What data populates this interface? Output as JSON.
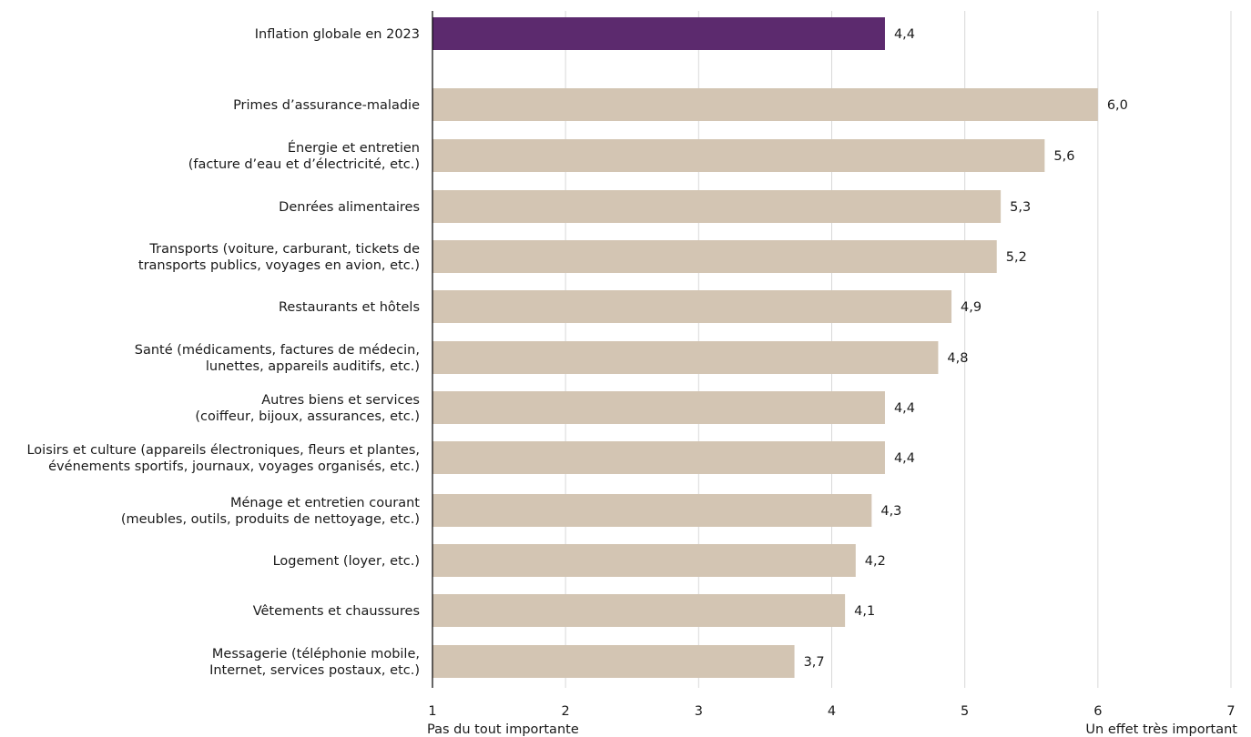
{
  "chart_data": {
    "type": "bar",
    "orientation": "horizontal",
    "xlim": [
      1,
      7
    ],
    "x_ticks": [
      "1",
      "2",
      "3",
      "4",
      "5",
      "6",
      "7"
    ],
    "x_axis_left_label": "Pas du tout importante",
    "x_axis_right_label": "Un effet très important",
    "grid": true,
    "colors": {
      "highlight": "#5c2a6e",
      "default": "#d3c5b3",
      "gridline": "#d9d9d9",
      "axis": "#000000"
    },
    "categories": [
      {
        "label": [
          "Inflation globale en 2023"
        ],
        "value": 4.4,
        "value_label": "4,4",
        "highlight": true
      },
      {
        "label": [
          "Primes d’assurance-maladie"
        ],
        "value": 6.0,
        "value_label": "6,0",
        "highlight": false
      },
      {
        "label": [
          "Énergie et entretien",
          "(facture d’eau et d’électricité, etc.)"
        ],
        "value": 5.6,
        "value_label": "5,6",
        "highlight": false
      },
      {
        "label": [
          "Denrées alimentaires"
        ],
        "value": 5.27,
        "value_label": "5,3",
        "highlight": false
      },
      {
        "label": [
          "Transports (voiture, carburant, tickets de",
          "transports publics, voyages en avion, etc.)"
        ],
        "value": 5.24,
        "value_label": "5,2",
        "highlight": false
      },
      {
        "label": [
          "Restaurants et hôtels"
        ],
        "value": 4.9,
        "value_label": "4,9",
        "highlight": false
      },
      {
        "label": [
          "Santé (médicaments, factures de médecin,",
          "lunettes, appareils auditifs, etc.)"
        ],
        "value": 4.8,
        "value_label": "4,8",
        "highlight": false
      },
      {
        "label": [
          "Autres biens et services",
          "(coiffeur, bijoux, assurances, etc.)"
        ],
        "value": 4.4,
        "value_label": "4,4",
        "highlight": false
      },
      {
        "label": [
          "Loisirs et culture (appareils électroniques, fleurs et plantes,",
          "événements sportifs, journaux, voyages organisés, etc.)"
        ],
        "value": 4.4,
        "value_label": "4,4",
        "highlight": false
      },
      {
        "label": [
          "Ménage et entretien courant",
          "(meubles, outils, produits de nettoyage, etc.)"
        ],
        "value": 4.3,
        "value_label": "4,3",
        "highlight": false
      },
      {
        "label": [
          "Logement (loyer, etc.)"
        ],
        "value": 4.18,
        "value_label": "4,2",
        "highlight": false
      },
      {
        "label": [
          "Vêtements et chaussures"
        ],
        "value": 4.1,
        "value_label": "4,1",
        "highlight": false
      },
      {
        "label": [
          "Messagerie (téléphonie mobile,",
          "Internet, services postaux, etc.)"
        ],
        "value": 3.72,
        "value_label": "3,7",
        "highlight": false
      }
    ]
  }
}
